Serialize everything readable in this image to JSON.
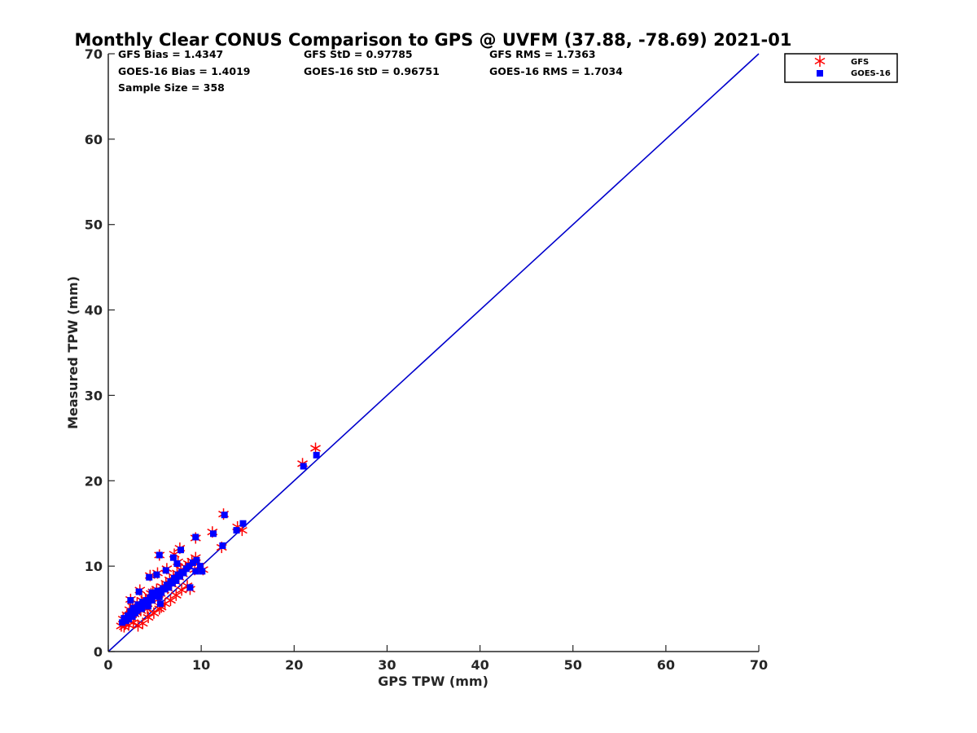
{
  "chart_data": {
    "type": "scatter",
    "title": "Monthly Clear CONUS Comparison to GPS @ UVFM (37.88, -78.69) 2021-01",
    "xlabel": "GPS TPW (mm)",
    "ylabel": "Measured TPW (mm)",
    "xlim": [
      0,
      70
    ],
    "ylim": [
      0,
      70
    ],
    "xticks": [
      0,
      10,
      20,
      30,
      40,
      50,
      60,
      70
    ],
    "yticks": [
      0,
      10,
      20,
      30,
      40,
      50,
      60,
      70
    ],
    "grid": false,
    "legend_position": "outside top-right",
    "stats": {
      "gfs_bias": "GFS Bias = 1.4347",
      "gfs_std": "GFS StD = 0.97785",
      "gfs_rms": "GFS RMS = 1.7363",
      "goes_bias": "GOES-16 Bias = 1.4019",
      "goes_std": "GOES-16 StD = 0.96751",
      "goes_rms": "GOES-16 RMS = 1.7034",
      "sample_size": "Sample Size = 358"
    },
    "reference_line": {
      "x": [
        0,
        70
      ],
      "y": [
        0,
        70
      ],
      "color": "#0000cc"
    },
    "series": [
      {
        "name": "GFS",
        "marker": "asterisk",
        "color": "#ff0000",
        "x": [
          1.4,
          1.6,
          1.8,
          2.0,
          2.1,
          2.3,
          2.5,
          2.6,
          2.8,
          3.0,
          3.1,
          3.3,
          3.5,
          3.6,
          3.8,
          4.0,
          4.2,
          4.4,
          4.6,
          4.8,
          5.0,
          5.2,
          5.4,
          5.6,
          5.8,
          6.0,
          6.2,
          6.4,
          6.6,
          6.8,
          7.0,
          7.2,
          7.4,
          7.6,
          7.8,
          8.0,
          8.3,
          8.6,
          9.0,
          9.4,
          9.8,
          1.7,
          2.2,
          2.7,
          3.2,
          3.7,
          4.3,
          4.9,
          5.5,
          6.1,
          6.7,
          7.3,
          7.9,
          8.5,
          2.4,
          3.4,
          4.5,
          5.3,
          6.3,
          7.5,
          4.6,
          5.7,
          7.1,
          7.7,
          8.8,
          9.3,
          10.2,
          5.5,
          9.4,
          11.2,
          12.4,
          12.2,
          13.9,
          14.4,
          20.9,
          22.3
        ],
        "y": [
          3.0,
          3.8,
          3.2,
          4.3,
          3.6,
          4.9,
          3.9,
          5.3,
          4.4,
          4.6,
          5.7,
          5.1,
          4.8,
          6.0,
          5.5,
          6.1,
          5.0,
          6.5,
          5.9,
          7.0,
          6.4,
          7.3,
          6.1,
          6.8,
          7.6,
          7.2,
          8.0,
          7.4,
          8.4,
          7.9,
          8.8,
          8.2,
          9.2,
          8.7,
          9.6,
          9.1,
          9.9,
          10.3,
          10.6,
          11.0,
          10.0,
          2.9,
          3.1,
          3.4,
          3.0,
          3.3,
          4.0,
          4.5,
          5.0,
          5.6,
          6.0,
          6.6,
          7.2,
          7.7,
          6.1,
          7.2,
          8.9,
          9.2,
          9.7,
          10.5,
          6.8,
          5.2,
          11.4,
          12.1,
          7.3,
          9.6,
          9.6,
          11.3,
          13.3,
          14.0,
          16.1,
          12.2,
          14.6,
          14.2,
          22.0,
          23.8
        ]
      },
      {
        "name": "GOES-16",
        "marker": "square",
        "color": "#0000ff",
        "x": [
          1.5,
          1.7,
          1.9,
          2.1,
          2.2,
          2.4,
          2.6,
          2.7,
          2.9,
          3.1,
          3.2,
          3.4,
          3.6,
          3.7,
          3.9,
          4.1,
          4.3,
          4.5,
          4.7,
          4.9,
          5.1,
          5.3,
          5.5,
          5.7,
          5.9,
          6.1,
          6.3,
          6.5,
          6.7,
          6.9,
          7.1,
          7.3,
          7.5,
          7.7,
          7.9,
          8.1,
          8.4,
          8.7,
          9.1,
          9.5,
          9.9,
          2.4,
          3.3,
          4.4,
          5.2,
          6.2,
          7.4,
          4.7,
          5.6,
          7.0,
          7.8,
          8.8,
          9.4,
          10.1,
          5.5,
          9.4,
          11.3,
          12.5,
          12.3,
          13.8,
          14.5,
          21.0,
          22.4
        ],
        "y": [
          3.4,
          3.9,
          3.6,
          4.2,
          3.8,
          4.7,
          4.1,
          5.1,
          4.5,
          4.8,
          5.5,
          5.2,
          5.0,
          5.8,
          5.6,
          6.0,
          5.3,
          6.3,
          6.0,
          6.8,
          6.5,
          7.1,
          6.4,
          6.9,
          7.4,
          7.3,
          7.8,
          7.5,
          8.2,
          8.0,
          8.6,
          8.3,
          9.0,
          8.8,
          9.3,
          9.2,
          9.7,
          10.0,
          10.4,
          10.7,
          10.0,
          6.0,
          7.0,
          8.7,
          9.0,
          9.5,
          10.3,
          6.9,
          5.6,
          11.0,
          11.9,
          7.5,
          9.4,
          9.4,
          11.3,
          13.4,
          13.8,
          16.0,
          12.4,
          14.2,
          15.0,
          21.7,
          23.0
        ]
      }
    ]
  }
}
